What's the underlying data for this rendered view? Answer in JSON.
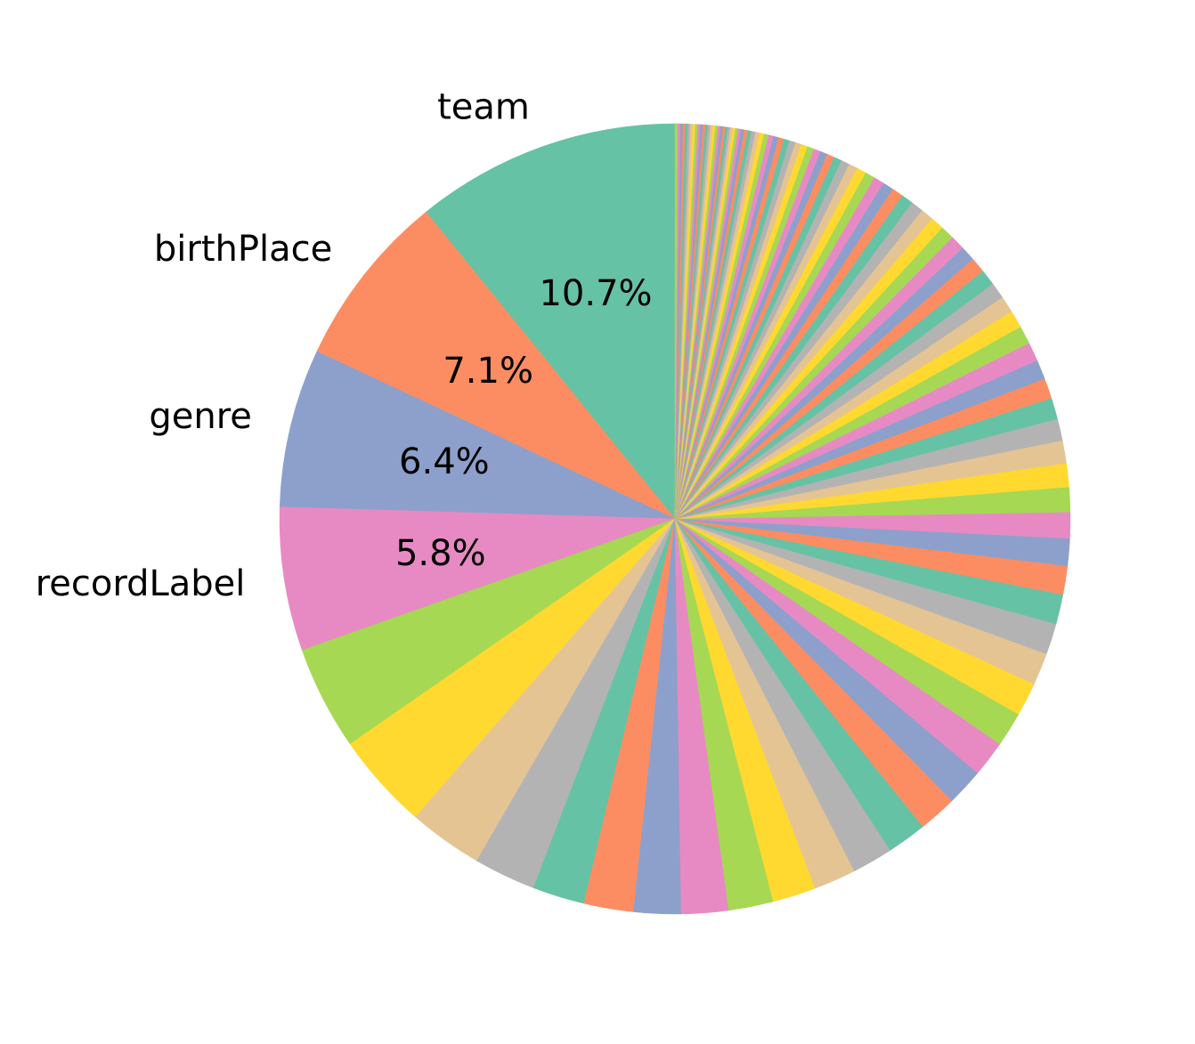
{
  "chart_data": {
    "type": "pie",
    "title": "",
    "start_angle_deg": 90,
    "direction": "clockwise",
    "palette": [
      "#66c2a5",
      "#fc8d62",
      "#8da0cb",
      "#e78ac3",
      "#a6d854",
      "#ffd92f",
      "#e5c494",
      "#b3b3b3"
    ],
    "labeled_slices": [
      {
        "label": "team",
        "percent": 10.7,
        "percent_label": "10.7%"
      },
      {
        "label": "birthPlace",
        "percent": 7.1,
        "percent_label": "7.1%"
      },
      {
        "label": "genre",
        "percent": 6.4,
        "percent_label": "6.4%"
      },
      {
        "label": "recordLabel",
        "percent": 5.8,
        "percent_label": "5.8%"
      }
    ],
    "unlabeled_slice_percents": [
      4.2,
      3.9,
      3.0,
      2.5,
      2.1,
      2.0,
      1.9,
      1.9,
      1.8,
      1.75,
      1.7,
      1.65,
      1.6,
      1.55,
      1.5,
      1.45,
      1.4,
      1.35,
      1.3,
      1.25,
      1.2,
      1.15,
      1.1,
      1.05,
      1.0,
      0.95,
      0.92,
      0.88,
      0.85,
      0.82,
      0.79,
      0.76,
      0.73,
      0.7,
      0.68,
      0.66,
      0.64,
      0.62,
      0.6,
      0.58,
      0.56,
      0.54,
      0.52,
      0.5,
      0.48,
      0.46,
      0.44,
      0.42,
      0.4,
      0.38,
      0.36,
      0.34,
      0.32,
      0.3,
      0.29,
      0.28,
      0.27,
      0.26,
      0.25,
      0.24,
      0.23,
      0.22,
      0.21,
      0.2,
      0.19,
      0.18,
      0.17,
      0.16,
      0.15,
      0.14,
      0.13,
      0.12,
      0.11,
      0.1,
      0.1,
      0.1,
      0.1,
      0.1,
      0.1,
      0.1,
      0.1,
      0.1,
      0.1,
      0.1,
      0.1,
      0.1,
      0.1,
      0.1,
      0.1,
      0.1,
      0.1,
      0.1,
      0.1,
      0.1,
      0.1,
      0.1,
      0.1
    ]
  }
}
